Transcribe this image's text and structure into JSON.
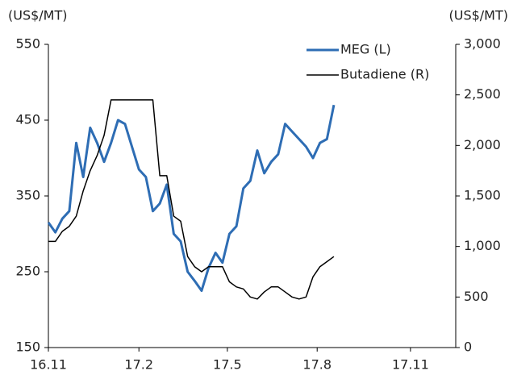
{
  "chart_data": {
    "type": "line",
    "y_label": "(US$/MT)",
    "y2_label": "(US$/MT)",
    "x": [
      0,
      1,
      2,
      3,
      4,
      5,
      6,
      7,
      8,
      9,
      10,
      11,
      12,
      13,
      14,
      15,
      16,
      17,
      18,
      19,
      20,
      21,
      22,
      23,
      24,
      25,
      26,
      27,
      28,
      29,
      30,
      31,
      32,
      33,
      34,
      35,
      36,
      37,
      38,
      39,
      40,
      41
    ],
    "xlim": [
      0,
      58.5
    ],
    "xticks": [
      {
        "value": 0,
        "label": "16.11"
      },
      {
        "value": 13,
        "label": "17.2"
      },
      {
        "value": 25.7,
        "label": "17.5"
      },
      {
        "value": 38.6,
        "label": "17.8"
      },
      {
        "value": 52,
        "label": "17.11"
      }
    ],
    "ylim": [
      150,
      550
    ],
    "yticks": [
      150,
      250,
      350,
      450,
      550
    ],
    "y2lim": [
      0,
      3000
    ],
    "y2ticks": [
      0,
      500,
      {
        "value": 1000,
        "label": "1,000"
      },
      {
        "value": 1500,
        "label": "1,500"
      },
      {
        "value": 2000,
        "label": "2,000"
      },
      {
        "value": 2500,
        "label": "2,500"
      },
      {
        "value": 3000,
        "label": "3,000"
      }
    ],
    "legend": "upper right",
    "series": [
      {
        "name": "MEG (L)",
        "color": "#2e6db4",
        "values": [
          315,
          302,
          320,
          330,
          420,
          375,
          440,
          420,
          395,
          420,
          450,
          445,
          415,
          385,
          375,
          330,
          340,
          365,
          300,
          290,
          250,
          238,
          225,
          255,
          275,
          262,
          300,
          310,
          360,
          370,
          410,
          380,
          395,
          405,
          445,
          435,
          425,
          415,
          400,
          420,
          425,
          470
        ]
      },
      {
        "name": "Butadiene (R)",
        "color": "#000000",
        "axis": "y2",
        "values": [
          1050,
          1050,
          1150,
          1200,
          1300,
          1550,
          1750,
          1900,
          2100,
          2450,
          2450,
          2450,
          2450,
          2450,
          2450,
          2450,
          1700,
          1700,
          1300,
          1250,
          900,
          800,
          750,
          800,
          800,
          800,
          650,
          600,
          580,
          500,
          480,
          550,
          600,
          600,
          550,
          500,
          480,
          500,
          700,
          800,
          850,
          900
        ]
      }
    ]
  }
}
